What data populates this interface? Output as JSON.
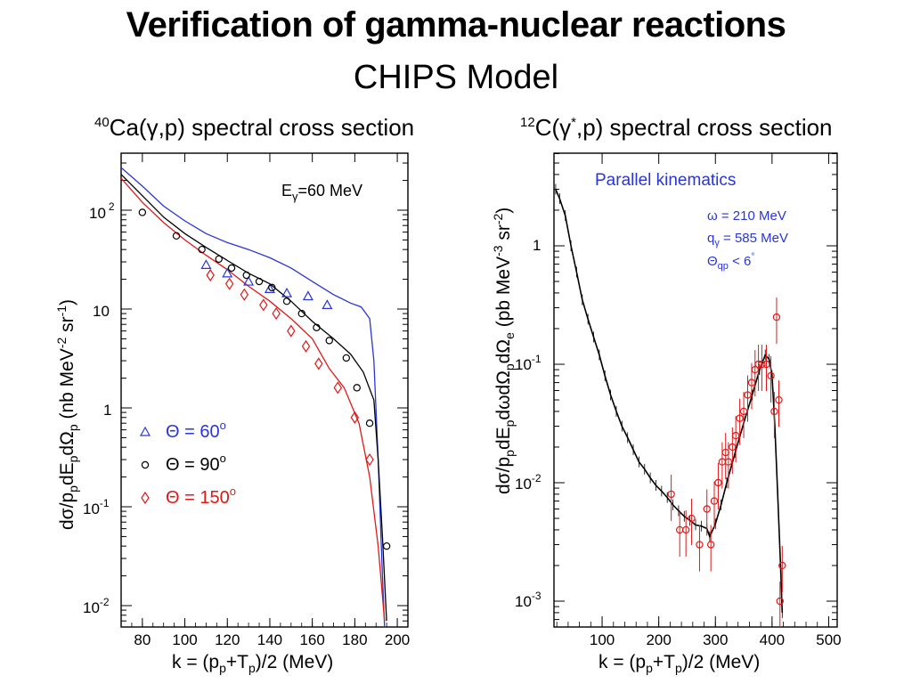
{
  "page": {
    "title_line1": "Verification of gamma-nuclear reactions",
    "title_line2": "CHIPS Model"
  },
  "colors": {
    "blue": "#2a35d8",
    "black": "#000000",
    "red": "#e01818"
  },
  "chart_data": [
    {
      "type": "scatter",
      "title": "40Ca(γ,p) spectral cross section",
      "xlabel": "k = (pp+Tp)/2 (MeV)",
      "ylabel": "dσ/ppdEpdΩp (nb MeV-2 sr-1)",
      "xlim": [
        70,
        205
      ],
      "ylim": [
        0.005,
        400
      ],
      "yscale": "log",
      "x_ticks": [
        80,
        100,
        120,
        140,
        160,
        180,
        200
      ],
      "y_ticks": [
        "10-2",
        "10-1",
        "1",
        "10",
        "102"
      ],
      "annotation": "Eγ=60 MeV",
      "legend_position": "lower-left",
      "series": [
        {
          "name": "Θ = 60°",
          "color": "#2a35d8",
          "marker": "triangle",
          "points": [
            [
              110,
              28
            ],
            [
              120,
              23
            ],
            [
              130,
              19
            ],
            [
              140,
              16
            ],
            [
              148,
              14.5
            ],
            [
              158,
              13.5
            ],
            [
              167,
              11
            ]
          ],
          "curve": [
            [
              70,
              270
            ],
            [
              80,
              175
            ],
            [
              90,
              110
            ],
            [
              100,
              78
            ],
            [
              110,
              58
            ],
            [
              120,
              47
            ],
            [
              130,
              40
            ],
            [
              140,
              33
            ],
            [
              150,
              26
            ],
            [
              160,
              19
            ],
            [
              170,
              14
            ],
            [
              178,
              11.5
            ],
            [
              183,
              10.5
            ],
            [
              187,
              8
            ],
            [
              189,
              3
            ],
            [
              191,
              0.3
            ],
            [
              193,
              0.02
            ],
            [
              194,
              0.005
            ]
          ]
        },
        {
          "name": "Θ = 90°",
          "color": "#000000",
          "marker": "circle",
          "points": [
            [
              80,
              95
            ],
            [
              96,
              55
            ],
            [
              108,
              40
            ],
            [
              116,
              32
            ],
            [
              122,
              26
            ],
            [
              129,
              22
            ],
            [
              135,
              19
            ],
            [
              141,
              16.5
            ],
            [
              148,
              12
            ],
            [
              155,
              9
            ],
            [
              162,
              6.5
            ],
            [
              168,
              4.8
            ],
            [
              176,
              3.2
            ],
            [
              181,
              1.6
            ],
            [
              187,
              0.7
            ],
            [
              195,
              0.04
            ]
          ],
          "curve": [
            [
              70,
              230
            ],
            [
              80,
              140
            ],
            [
              90,
              85
            ],
            [
              100,
              58
            ],
            [
              110,
              42
            ],
            [
              120,
              31
            ],
            [
              130,
              23
            ],
            [
              140,
              18
            ],
            [
              150,
              12
            ],
            [
              160,
              7.5
            ],
            [
              170,
              5
            ],
            [
              178,
              3.5
            ],
            [
              184,
              2.3
            ],
            [
              189,
              1.2
            ],
            [
              191,
              0.3
            ],
            [
              193,
              0.05
            ],
            [
              195,
              0.007
            ]
          ]
        },
        {
          "name": "Θ = 150°",
          "color": "#e01818",
          "marker": "diamond",
          "points": [
            [
              112,
              22
            ],
            [
              121,
              18
            ],
            [
              128,
              14
            ],
            [
              137,
              11
            ],
            [
              143,
              9
            ],
            [
              150,
              6
            ],
            [
              157,
              4.2
            ],
            [
              163,
              2.8
            ],
            [
              172,
              1.6
            ],
            [
              180,
              0.8
            ],
            [
              187,
              0.3
            ]
          ],
          "curve": [
            [
              70,
              210
            ],
            [
              80,
              120
            ],
            [
              90,
              75
            ],
            [
              100,
              50
            ],
            [
              110,
              35
            ],
            [
              120,
              25
            ],
            [
              130,
              17
            ],
            [
              140,
              12
            ],
            [
              150,
              8
            ],
            [
              160,
              5
            ],
            [
              168,
              2.5
            ],
            [
              175,
              1.6
            ],
            [
              182,
              0.7
            ],
            [
              187,
              0.2
            ],
            [
              191,
              0.04
            ],
            [
              194,
              0.007
            ]
          ]
        }
      ]
    },
    {
      "type": "scatter",
      "title": "12C(γ*,p) spectral cross section",
      "xlabel": "k = (pp+Tp)/2 (MeV)",
      "ylabel": "dσ/ppdEpdωdΩpdΩe (pb MeV-3 sr-2)",
      "xlim": [
        15,
        515
      ],
      "ylim": [
        0.0006,
        5
      ],
      "yscale": "log",
      "x_ticks": [
        100,
        200,
        300,
        400,
        500
      ],
      "y_ticks": [
        "10-3",
        "10-2",
        "10-1",
        "1"
      ],
      "annotation_title": "Parallel kinematics",
      "annotations": [
        "ω = 210 MeV",
        "qγ = 585 MeV",
        "Θqp < 6°"
      ],
      "series": [
        {
          "name": "",
          "color": "#000000",
          "marker": "line",
          "curve": [
            [
              18,
              3.0
            ],
            [
              25,
              2.5
            ],
            [
              35,
              1.8
            ],
            [
              45,
              1.0
            ],
            [
              55,
              0.6
            ],
            [
              65,
              0.35
            ],
            [
              75,
              0.24
            ],
            [
              85,
              0.17
            ],
            [
              95,
              0.12
            ],
            [
              105,
              0.08
            ],
            [
              115,
              0.055
            ],
            [
              125,
              0.04
            ],
            [
              135,
              0.03
            ],
            [
              145,
              0.024
            ],
            [
              155,
              0.019
            ],
            [
              165,
              0.015
            ],
            [
              175,
              0.013
            ],
            [
              185,
              0.011
            ],
            [
              195,
              0.0095
            ],
            [
              205,
              0.0085
            ],
            [
              215,
              0.0075
            ],
            [
              225,
              0.0065
            ],
            [
              235,
              0.0058
            ],
            [
              245,
              0.0052
            ],
            [
              255,
              0.0048
            ],
            [
              265,
              0.0044
            ],
            [
              275,
              0.0043
            ],
            [
              285,
              0.0041
            ],
            [
              290,
              0.0035
            ],
            [
              300,
              0.0045
            ],
            [
              310,
              0.0065
            ],
            [
              320,
              0.01
            ],
            [
              335,
              0.018
            ],
            [
              350,
              0.032
            ],
            [
              365,
              0.055
            ],
            [
              378,
              0.09
            ],
            [
              388,
              0.12
            ],
            [
              395,
              0.11
            ],
            [
              400,
              0.08
            ],
            [
              405,
              0.03
            ],
            [
              410,
              0.008
            ],
            [
              415,
              0.002
            ],
            [
              418,
              0.0008
            ]
          ]
        },
        {
          "name": "",
          "color": "#e01818",
          "marker": "circle",
          "points": [
            [
              222,
              0.008
            ],
            [
              237,
              0.004
            ],
            [
              248,
              0.004
            ],
            [
              258,
              0.005
            ],
            [
              272,
              0.003
            ],
            [
              285,
              0.006
            ],
            [
              292,
              0.003
            ],
            [
              298,
              0.007
            ],
            [
              305,
              0.01
            ],
            [
              312,
              0.015
            ],
            [
              318,
              0.018
            ],
            [
              323,
              0.015
            ],
            [
              330,
              0.02
            ],
            [
              336,
              0.025
            ],
            [
              343,
              0.035
            ],
            [
              350,
              0.04
            ],
            [
              357,
              0.055
            ],
            [
              364,
              0.07
            ],
            [
              370,
              0.09
            ],
            [
              376,
              0.1
            ],
            [
              382,
              0.1
            ],
            [
              390,
              0.1
            ],
            [
              398,
              0.08
            ],
            [
              404,
              0.04
            ],
            [
              408,
              0.25
            ],
            [
              412,
              0.05
            ],
            [
              414,
              0.001
            ],
            [
              418,
              0.002
            ]
          ]
        }
      ]
    }
  ]
}
